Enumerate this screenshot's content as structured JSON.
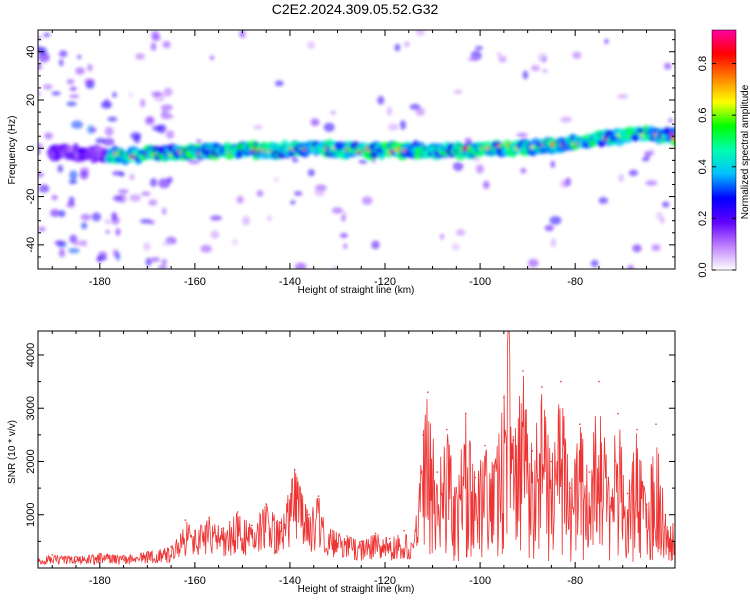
{
  "title": "C2E2.2024.309.05.52.G32",
  "chart_data": [
    {
      "type": "heatmap",
      "xlabel": "Height of straight line (km)",
      "ylabel": "Frequency (Hz)",
      "xlim": [
        -193,
        -59
      ],
      "ylim": [
        -50,
        49
      ],
      "x_ticks": [
        -180,
        -160,
        -140,
        -120,
        -100,
        -80
      ],
      "y_ticks": [
        40,
        20,
        0,
        -20,
        -40
      ],
      "colorbar": {
        "label": "Normalized spectral amplitude",
        "range": [
          0,
          0.93
        ],
        "ticks": [
          0.0,
          0.2,
          0.4,
          0.6,
          0.8
        ],
        "colors": [
          "#ffffff",
          "#c080ff",
          "#6000ff",
          "#0000ff",
          "#00c0ff",
          "#00ffb0",
          "#00ff00",
          "#ffff00",
          "#ff8000",
          "#ff0000",
          "#ff00a0"
        ]
      },
      "ridge": {
        "x": [
          -193,
          -185,
          -175,
          -165,
          -155,
          -145,
          -135,
          -125,
          -115,
          -105,
          -95,
          -85,
          -75,
          -65,
          -59
        ],
        "y": [
          -1,
          -2,
          -3,
          -2,
          -1,
          -1,
          0,
          -1,
          -1,
          -1,
          0,
          1,
          4,
          6,
          5
        ]
      }
    },
    {
      "type": "line",
      "xlabel": "Height of straight line (km)",
      "ylabel": "SNR (10 * v/v)",
      "xlim": [
        -193,
        -59
      ],
      "ylim": [
        0,
        4450
      ],
      "x_ticks": [
        -180,
        -160,
        -140,
        -120,
        -100,
        -80
      ],
      "y_ticks": [
        1000,
        2000,
        3000,
        4000
      ],
      "series": [
        {
          "color": "#ee3333",
          "x": [
            -193,
            -190,
            -185,
            -180,
            -175,
            -170,
            -165,
            -162,
            -160,
            -157,
            -154,
            -151,
            -148,
            -145,
            -142,
            -139,
            -136,
            -134,
            -131,
            -128,
            -125,
            -122,
            -119,
            -116,
            -114,
            -112,
            -111,
            -109,
            -107,
            -105,
            -103,
            -101,
            -99,
            -97,
            -95,
            -94,
            -93,
            -91,
            -89,
            -87,
            -85,
            -83,
            -81,
            -79,
            -77,
            -75,
            -73,
            -71,
            -69,
            -67,
            -65,
            -63,
            -61,
            -59
          ],
          "y": [
            180,
            250,
            210,
            270,
            230,
            300,
            400,
            900,
            700,
            950,
            750,
            1050,
            800,
            1200,
            850,
            1850,
            1000,
            1350,
            700,
            600,
            500,
            650,
            550,
            700,
            400,
            2500,
            3300,
            1800,
            2600,
            1500,
            2900,
            1700,
            2300,
            1900,
            3200,
            4450,
            2400,
            3700,
            2200,
            3400,
            2000,
            3500,
            1500,
            2700,
            1800,
            3500,
            1700,
            2900,
            1400,
            2600,
            1200,
            2700,
            1000,
            800
          ]
        }
      ]
    }
  ]
}
